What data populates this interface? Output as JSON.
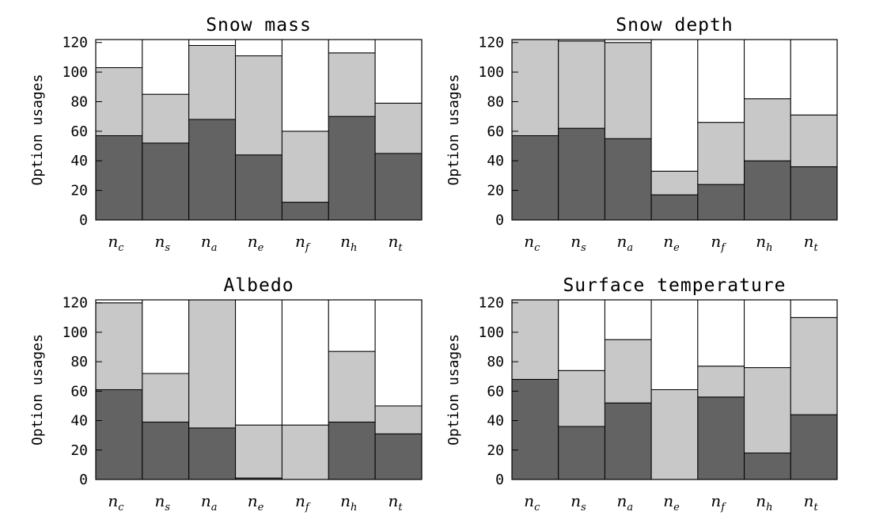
{
  "colors": {
    "bottom": "#636363",
    "middle": "#c8c8c8",
    "top": "#ffffff",
    "frame": "#000000"
  },
  "chart_data": [
    {
      "type": "bar",
      "stacked": true,
      "title": "Snow mass",
      "ylabel": "Option usages",
      "ylim": [
        0,
        122
      ],
      "yticks": [
        0,
        20,
        40,
        60,
        80,
        100,
        120
      ],
      "categories": [
        "n_c",
        "n_s",
        "n_a",
        "n_e",
        "n_f",
        "n_h",
        "n_t"
      ],
      "series": [
        {
          "values": [
            57,
            52,
            68,
            44,
            12,
            70,
            45
          ]
        },
        {
          "values": [
            46,
            33,
            50,
            67,
            48,
            43,
            34
          ]
        },
        {
          "values": [
            19,
            37,
            4,
            11,
            62,
            9,
            43
          ]
        }
      ]
    },
    {
      "type": "bar",
      "stacked": true,
      "title": "Snow depth",
      "ylabel": "Option usages",
      "ylim": [
        0,
        122
      ],
      "yticks": [
        0,
        20,
        40,
        60,
        80,
        100,
        120
      ],
      "categories": [
        "n_c",
        "n_s",
        "n_a",
        "n_e",
        "n_f",
        "n_h",
        "n_t"
      ],
      "series": [
        {
          "values": [
            57,
            62,
            55,
            17,
            24,
            40,
            36
          ]
        },
        {
          "values": [
            65,
            59,
            65,
            16,
            42,
            42,
            35
          ]
        },
        {
          "values": [
            0,
            1,
            2,
            89,
            56,
            40,
            51
          ]
        }
      ]
    },
    {
      "type": "bar",
      "stacked": true,
      "title": "Albedo",
      "ylabel": "Option usages",
      "ylim": [
        0,
        122
      ],
      "yticks": [
        0,
        20,
        40,
        60,
        80,
        100,
        120
      ],
      "categories": [
        "n_c",
        "n_s",
        "n_a",
        "n_e",
        "n_f",
        "n_h",
        "n_t"
      ],
      "series": [
        {
          "values": [
            61,
            39,
            35,
            1,
            0,
            39,
            31
          ]
        },
        {
          "values": [
            59,
            33,
            87,
            36,
            37,
            48,
            19
          ]
        },
        {
          "values": [
            2,
            50,
            0,
            85,
            85,
            35,
            72
          ]
        }
      ]
    },
    {
      "type": "bar",
      "stacked": true,
      "title": "Surface temperature",
      "ylabel": "Option usages",
      "ylim": [
        0,
        122
      ],
      "yticks": [
        0,
        20,
        40,
        60,
        80,
        100,
        120
      ],
      "categories": [
        "n_c",
        "n_s",
        "n_a",
        "n_e",
        "n_f",
        "n_h",
        "n_t"
      ],
      "series": [
        {
          "values": [
            68,
            36,
            52,
            0,
            56,
            18,
            44
          ]
        },
        {
          "values": [
            54,
            38,
            43,
            61,
            21,
            58,
            66
          ]
        },
        {
          "values": [
            0,
            48,
            27,
            61,
            45,
            46,
            12
          ]
        }
      ]
    }
  ]
}
